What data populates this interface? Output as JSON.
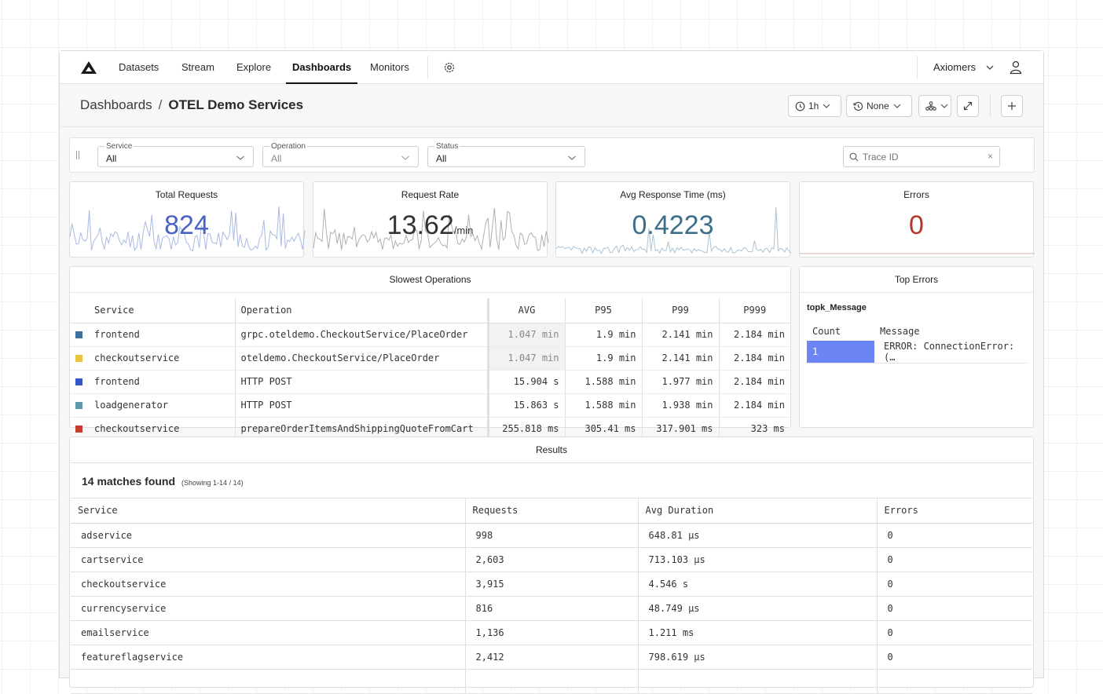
{
  "nav": {
    "items": [
      {
        "label": "Datasets",
        "active": false
      },
      {
        "label": "Stream",
        "active": false
      },
      {
        "label": "Explore",
        "active": false
      },
      {
        "label": "Dashboards",
        "active": true
      },
      {
        "label": "Monitors",
        "active": false
      }
    ],
    "org_name": "Axiomers"
  },
  "header": {
    "breadcrumb_root": "Dashboards",
    "breadcrumb_separator": "/",
    "title": "OTEL Demo Services",
    "time_range": "1h",
    "compare": "None"
  },
  "filters": {
    "service": {
      "label": "Service",
      "value": "All"
    },
    "operation": {
      "label": "Operation",
      "value": "All"
    },
    "status": {
      "label": "Status",
      "value": "All"
    },
    "trace_placeholder": "Trace ID",
    "trace_clear": "×"
  },
  "stats": {
    "total_requests": {
      "title": "Total Requests",
      "value": "824",
      "color": "#4a63c4"
    },
    "request_rate": {
      "title": "Request Rate",
      "value": "13.62",
      "unit": "/min",
      "color": "#333333"
    },
    "avg_response": {
      "title": "Avg Response Time (ms)",
      "value": "0.4223",
      "color": "#3d6e8a"
    },
    "errors": {
      "title": "Errors",
      "value": "0",
      "color": "#b5352c"
    }
  },
  "slowest_operations": {
    "title": "Slowest Operations",
    "columns": [
      "Service",
      "Operation",
      "AVG",
      "P95",
      "P99",
      "P999"
    ],
    "rows": [
      {
        "color": "#3a6f9e",
        "service": "frontend",
        "operation": "grpc.oteldemo.CheckoutService/PlaceOrder",
        "avg": "1.047 min",
        "p95": "1.9 min",
        "p99": "2.141 min",
        "p999": "2.184 min"
      },
      {
        "color": "#e8c440",
        "service": "checkoutservice",
        "operation": "oteldemo.CheckoutService/PlaceOrder",
        "avg": "1.047 min",
        "p95": "1.9 min",
        "p99": "2.141 min",
        "p999": "2.184 min"
      },
      {
        "color": "#3556c2",
        "service": "frontend",
        "operation": "HTTP POST",
        "avg": "15.904 s",
        "p95": "1.588 min",
        "p99": "1.977 min",
        "p999": "2.184 min"
      },
      {
        "color": "#5f98a8",
        "service": "loadgenerator",
        "operation": "HTTP POST",
        "avg": "15.863 s",
        "p95": "1.588 min",
        "p99": "1.938 min",
        "p999": "2.184 min"
      },
      {
        "color": "#c63d2e",
        "service": "checkoutservice",
        "operation": "prepareOrderItemsAndShippingQuoteFromCart",
        "avg": "255.818 ms",
        "p95": "305.41 ms",
        "p99": "317.901 ms",
        "p999": "323 ms"
      }
    ]
  },
  "top_errors": {
    "title": "Top Errors",
    "subtitle": "topk_Message",
    "columns": [
      "Count",
      "Message"
    ],
    "rows": [
      {
        "count": "1",
        "message": "ERROR: ConnectionError: (…"
      }
    ],
    "bar_color": "#6b86f2"
  },
  "results": {
    "title": "Results",
    "count_text": "14 matches found",
    "showing_text": "(Showing 1-14 / 14)",
    "columns": [
      "Service",
      "Requests",
      "Avg Duration",
      "Errors"
    ],
    "rows": [
      [
        "adservice",
        "998",
        "648.81 µs",
        "0"
      ],
      [
        "cartservice",
        "2,603",
        "713.103 µs",
        "0"
      ],
      [
        "checkoutservice",
        "3,915",
        "4.546 s",
        "0"
      ],
      [
        "currencyservice",
        "816",
        "48.749 µs",
        "0"
      ],
      [
        "emailservice",
        "1,136",
        "1.211 ms",
        "0"
      ],
      [
        "featureflagservice",
        "2,412",
        "798.619 µs",
        "0"
      ],
      [
        "",
        "",
        "",
        ""
      ]
    ]
  }
}
